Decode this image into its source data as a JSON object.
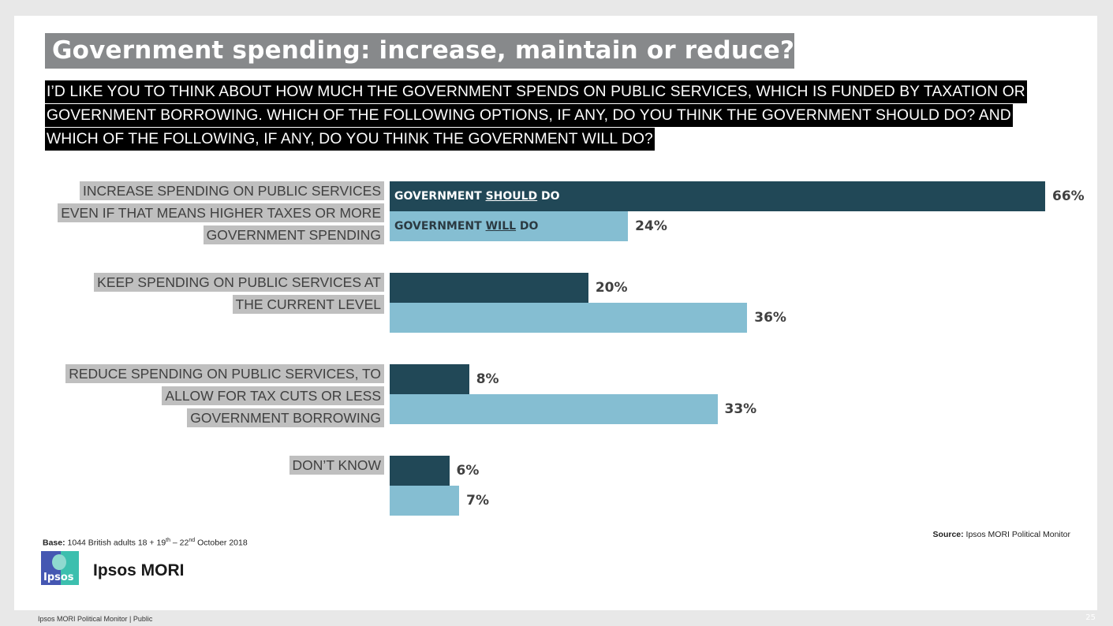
{
  "title": "Government spending: increase, maintain or reduce?",
  "question_lines": [
    "I’D LIKE YOU TO THINK ABOUT HOW MUCH THE GOVERNMENT SPENDS ON PUBLIC SERVICES, WHICH IS FUNDED BY TAXATION OR",
    "GOVERNMENT BORROWING. WHICH OF THE FOLLOWING OPTIONS, IF ANY, DO YOU THINK THE GOVERNMENT SHOULD DO? AND",
    "WHICH OF THE FOLLOWING, IF ANY, DO YOU THINK THE GOVERNMENT WILL DO?"
  ],
  "legend": {
    "should": {
      "prefix": "GOVERNMENT ",
      "emph": "SHOULD",
      "suffix": " DO"
    },
    "will": {
      "prefix": "GOVERNMENT ",
      "emph": "WILL",
      "suffix": " DO"
    }
  },
  "colors": {
    "should": "#214857",
    "will": "#85bed2",
    "title_bg": "#87898b",
    "label_bg": "#bfbfbf"
  },
  "chart_data": {
    "type": "bar",
    "orientation": "horizontal",
    "title": "Government spending: increase, maintain or reduce?",
    "categories": [
      [
        "INCREASE SPENDING ON PUBLIC SERVICES",
        "EVEN IF THAT MEANS HIGHER TAXES OR MORE",
        "GOVERNMENT SPENDING"
      ],
      [
        "KEEP SPENDING ON PUBLIC SERVICES AT",
        "THE CURRENT LEVEL"
      ],
      [
        "REDUCE SPENDING ON PUBLIC SERVICES, TO",
        "ALLOW FOR TAX CUTS OR LESS",
        "GOVERNMENT BORROWING"
      ],
      [
        "DON’T KNOW"
      ]
    ],
    "series": [
      {
        "name": "GOVERNMENT SHOULD DO",
        "values": [
          66,
          20,
          8,
          6
        ],
        "labels": [
          "66%",
          "20%",
          "8%",
          "6%"
        ]
      },
      {
        "name": "GOVERNMENT WILL DO",
        "values": [
          24,
          36,
          33,
          7
        ],
        "labels": [
          "24%",
          "36%",
          "33%",
          "7%"
        ]
      }
    ],
    "xlim": [
      0,
      66
    ],
    "unit": "%",
    "grid": false,
    "legend_placement": "inside-first-bars"
  },
  "footer": {
    "base_label": "Base:",
    "base_text_1": " 1044 British adults 18 + 19",
    "base_sup_1": "th",
    "base_text_2": " – 22",
    "base_sup_2": "nd",
    "base_text_3": " October 2018",
    "source_label": "Source:",
    "source_text": " Ipsos MORI Political Monitor",
    "brand": "Ipsos MORI",
    "logo_text": "Ipsos",
    "bottom_left": "Ipsos  MORI  Political  Monitor  |  Public",
    "page_number": "25"
  }
}
